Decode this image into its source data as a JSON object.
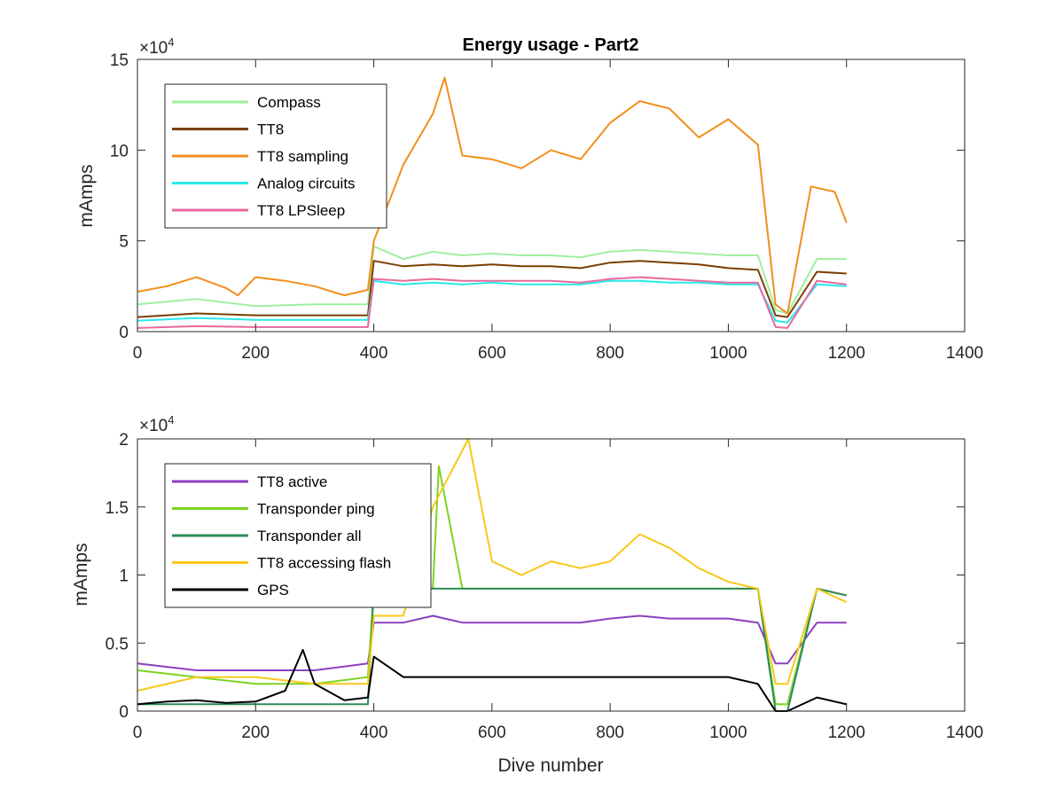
{
  "chart_data": [
    {
      "type": "line",
      "title": "Energy usage - Part2",
      "xlabel": "",
      "ylabel": "mAmps",
      "y_exponent_label": "×10^4",
      "y_exponent_base": "10",
      "y_exponent_power": "4",
      "xlim": [
        0,
        1400
      ],
      "ylim": [
        0,
        150000
      ],
      "xticks": [
        "0",
        "200",
        "400",
        "600",
        "800",
        "1000",
        "1200",
        "1400"
      ],
      "yticks": [
        "0",
        "5",
        "10",
        "15"
      ],
      "grid": false,
      "legend_position": "top-left",
      "series": [
        {
          "name": "Compass",
          "color": "#9fef9f",
          "x": [
            0,
            100,
            200,
            300,
            390,
            400,
            450,
            500,
            550,
            600,
            650,
            700,
            750,
            800,
            850,
            900,
            950,
            1000,
            1050,
            1080,
            1100,
            1150,
            1200
          ],
          "values": [
            15000,
            18000,
            14000,
            15000,
            15000,
            47000,
            40000,
            44000,
            42000,
            43000,
            42000,
            42000,
            41000,
            44000,
            45000,
            44000,
            43000,
            42000,
            42000,
            12000,
            10000,
            40000,
            40000
          ]
        },
        {
          "name": "TT8",
          "color": "#7b3f00",
          "x": [
            0,
            100,
            200,
            300,
            390,
            400,
            450,
            500,
            550,
            600,
            650,
            700,
            750,
            800,
            850,
            900,
            950,
            1000,
            1050,
            1080,
            1100,
            1150,
            1200
          ],
          "values": [
            8000,
            10000,
            9000,
            9000,
            9000,
            39000,
            36000,
            37000,
            36000,
            37000,
            36000,
            36000,
            35000,
            38000,
            39000,
            38000,
            37000,
            35000,
            34000,
            9000,
            8000,
            33000,
            32000
          ]
        },
        {
          "name": "TT8 sampling",
          "color": "#f28e1c",
          "x": [
            0,
            50,
            100,
            150,
            170,
            200,
            250,
            300,
            350,
            390,
            400,
            450,
            500,
            520,
            550,
            600,
            650,
            700,
            750,
            800,
            850,
            900,
            950,
            1000,
            1050,
            1080,
            1100,
            1140,
            1180,
            1200
          ],
          "values": [
            22000,
            25000,
            30000,
            24000,
            20000,
            30000,
            28000,
            25000,
            20000,
            23000,
            50000,
            92000,
            120000,
            140000,
            97000,
            95000,
            90000,
            100000,
            95000,
            115000,
            127000,
            123000,
            107000,
            117000,
            103000,
            15000,
            10000,
            80000,
            77000,
            60000
          ]
        },
        {
          "name": "Analog circuits",
          "color": "#29e8e8",
          "x": [
            0,
            100,
            200,
            300,
            390,
            400,
            450,
            500,
            550,
            600,
            650,
            700,
            750,
            800,
            850,
            900,
            950,
            1000,
            1050,
            1080,
            1100,
            1150,
            1200
          ],
          "values": [
            6000,
            7500,
            6500,
            6500,
            6500,
            28000,
            26000,
            27000,
            26000,
            27000,
            26000,
            26000,
            26000,
            28000,
            28000,
            27000,
            27000,
            26000,
            26000,
            6000,
            5000,
            26000,
            25000
          ]
        },
        {
          "name": "TT8 LPSleep",
          "color": "#e8699d",
          "x": [
            0,
            100,
            200,
            300,
            390,
            400,
            450,
            500,
            550,
            600,
            650,
            700,
            750,
            800,
            850,
            900,
            950,
            1000,
            1050,
            1080,
            1100,
            1150,
            1200
          ],
          "values": [
            2000,
            3000,
            2500,
            2500,
            2500,
            29000,
            28000,
            29000,
            28000,
            28000,
            28000,
            28000,
            27000,
            29000,
            30000,
            29000,
            28000,
            27000,
            27000,
            2500,
            2000,
            28000,
            26000
          ]
        }
      ]
    },
    {
      "type": "line",
      "title": "",
      "xlabel": "Dive number",
      "ylabel": "mAmps",
      "y_exponent_label": "×10^4",
      "y_exponent_base": "10",
      "y_exponent_power": "4",
      "xlim": [
        0,
        1400
      ],
      "ylim": [
        0,
        20000
      ],
      "xticks": [
        "0",
        "200",
        "400",
        "600",
        "800",
        "1000",
        "1200",
        "1400"
      ],
      "yticks": [
        "0",
        "0.5",
        "1",
        "1.5",
        "2"
      ],
      "grid": false,
      "legend_position": "top-left",
      "series": [
        {
          "name": "TT8 active",
          "color": "#8b3fbf",
          "x": [
            0,
            100,
            200,
            300,
            390,
            400,
            450,
            500,
            550,
            600,
            650,
            700,
            750,
            800,
            850,
            900,
            950,
            1000,
            1050,
            1080,
            1100,
            1150,
            1200
          ],
          "values": [
            3500,
            3000,
            3000,
            3000,
            3500,
            6500,
            6500,
            7000,
            6500,
            6500,
            6500,
            6500,
            6500,
            6800,
            7000,
            6800,
            6800,
            6800,
            6500,
            3500,
            3500,
            6500,
            6500
          ]
        },
        {
          "name": "Transponder ping",
          "color": "#7ed321",
          "x": [
            0,
            100,
            200,
            300,
            390,
            400,
            450,
            500,
            510,
            550,
            600,
            650,
            700,
            750,
            800,
            850,
            900,
            950,
            1000,
            1050,
            1080,
            1100,
            1150,
            1200
          ],
          "values": [
            3000,
            2500,
            2000,
            2000,
            2500,
            9000,
            9000,
            9000,
            18000,
            9000,
            9000,
            9000,
            9000,
            9000,
            9000,
            9000,
            9000,
            9000,
            9000,
            9000,
            500,
            500,
            9000,
            8500
          ]
        },
        {
          "name": "Transponder all",
          "color": "#2e8b57",
          "x": [
            0,
            100,
            200,
            300,
            390,
            400,
            450,
            500,
            550,
            600,
            650,
            700,
            750,
            800,
            850,
            900,
            950,
            1000,
            1050,
            1080,
            1100,
            1150,
            1200
          ],
          "values": [
            500,
            500,
            500,
            500,
            500,
            9000,
            9000,
            9000,
            9000,
            9000,
            9000,
            9000,
            9000,
            9000,
            9000,
            9000,
            9000,
            9000,
            9000,
            0,
            0,
            9000,
            8500
          ]
        },
        {
          "name": "TT8 accessing flash",
          "color": "#f7c81a",
          "x": [
            0,
            100,
            200,
            300,
            390,
            400,
            450,
            500,
            560,
            600,
            650,
            700,
            750,
            800,
            850,
            900,
            950,
            1000,
            1050,
            1080,
            1100,
            1150,
            1200
          ],
          "values": [
            1500,
            2500,
            2500,
            2000,
            2000,
            7000,
            7000,
            15000,
            20000,
            11000,
            10000,
            11000,
            10500,
            11000,
            13000,
            12000,
            10500,
            9500,
            9000,
            2000,
            2000,
            9000,
            8000
          ]
        },
        {
          "name": "GPS",
          "color": "#000000",
          "x": [
            0,
            50,
            100,
            150,
            200,
            250,
            280,
            300,
            350,
            390,
            400,
            450,
            500,
            550,
            600,
            650,
            700,
            750,
            800,
            850,
            900,
            950,
            1000,
            1050,
            1080,
            1100,
            1150,
            1200
          ],
          "values": [
            500,
            700,
            800,
            600,
            700,
            1500,
            4500,
            2000,
            800,
            1000,
            4000,
            2500,
            2500,
            2500,
            2500,
            2500,
            2500,
            2500,
            2500,
            2500,
            2500,
            2500,
            2500,
            2000,
            0,
            0,
            1000,
            500
          ]
        }
      ]
    }
  ]
}
